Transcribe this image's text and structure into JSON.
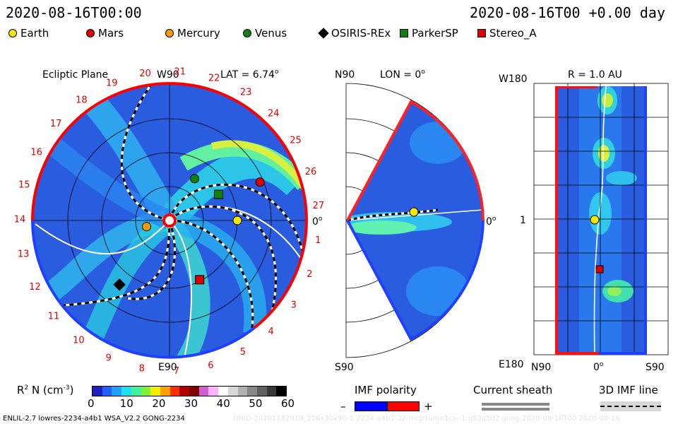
{
  "header": {
    "left_timestamp": "2020-08-16T00:00",
    "right_timestamp": "2020-08-16T00 +0.00 day"
  },
  "legend": [
    {
      "label": "Earth",
      "color": "#ffe800",
      "shape": "circle"
    },
    {
      "label": "Mars",
      "color": "#e00000",
      "shape": "circle"
    },
    {
      "label": "Mercury",
      "color": "#ff9a00",
      "shape": "circle"
    },
    {
      "label": "Venus",
      "color": "#108010",
      "shape": "circle"
    },
    {
      "label": "OSIRIS-REx",
      "color": "#000000",
      "shape": "diamond"
    },
    {
      "label": "ParkerSP",
      "color": "#108010",
      "shape": "square"
    },
    {
      "label": "Stereo_A",
      "color": "#e00000",
      "shape": "square"
    }
  ],
  "ecliptic": {
    "title": "Ecliptic Plane",
    "top_label": "W90",
    "bottom_label": "E90",
    "right_label": "0",
    "right_label_sup": "o",
    "lat_label": "LAT = 6.74",
    "lat_sup": "o",
    "carrington_labels": [
      "1",
      "2",
      "3",
      "4",
      "5",
      "6",
      "7",
      "8",
      "9",
      "10",
      "11",
      "12",
      "13",
      "14",
      "15",
      "16",
      "17",
      "18",
      "19",
      "20",
      "21",
      "22",
      "23",
      "24",
      "25",
      "26",
      "27"
    ]
  },
  "meridional": {
    "top_label": "N90",
    "bottom_label": "S90",
    "lon_label": "LON = 0",
    "lon_sup": "o",
    "right_label": "0",
    "right_sup": "o"
  },
  "synoptic": {
    "title": "R = 1.0 AU",
    "top_left": "W180",
    "bottom_left": "E180",
    "mid_left": "1",
    "x_left": "N90",
    "x_mid": "0",
    "x_mid_sup": "o",
    "x_right": "S90"
  },
  "colorbar": {
    "label": "R",
    "label_sup": "2",
    "label_rest": " N (cm",
    "label_sup2": "-3",
    "label_end": ")",
    "ticks": [
      "0",
      "10",
      "20",
      "30",
      "40",
      "50",
      "60"
    ],
    "colors": [
      "#2020c0",
      "#2060ff",
      "#20a0ff",
      "#20e0f0",
      "#40f0a0",
      "#80f040",
      "#f0f000",
      "#ffa000",
      "#ff3000",
      "#b00000",
      "#800000",
      "#d060d0",
      "#ffb0ff",
      "#ffffff",
      "#d8d8d8",
      "#b0b0b0",
      "#888888",
      "#606060",
      "#383838",
      "#000000"
    ]
  },
  "imf_legend": {
    "title": "IMF polarity",
    "minus": "–",
    "plus": "+",
    "neg_color": "#0000ff",
    "pos_color": "#ff0000"
  },
  "sheath_legend": {
    "title": "Current sheath"
  },
  "imf_line_legend": {
    "title": "3D IMF line"
  },
  "footer": {
    "left": "ENLIL-2.7 lowres-2234-a4b1 WSA_V2.2 GONG-2234",
    "right": "UNIQ-20201182919_256x30x90-1-2234-a4b1-32-mcp1umn1cs--1.g53q5d2 gong-2020-08-16T00 2020-08-16"
  },
  "chart_data": [
    {
      "type": "heatmap",
      "title": "Ecliptic Plane",
      "quantity": "R2 N (cm-3)",
      "colorbar_range": [
        0,
        60
      ],
      "bodies": [
        {
          "name": "Earth",
          "lon_deg": 0,
          "r_au": 1.0
        },
        {
          "name": "Mars",
          "lon_deg": 23,
          "r_au": 1.45
        },
        {
          "name": "Mercury",
          "lon_deg": 195,
          "r_au": 0.35
        },
        {
          "name": "Venus",
          "lon_deg": 59,
          "r_au": 0.72
        },
        {
          "name": "OSIRIS-REx",
          "lon_deg": 232,
          "r_au": 1.2
        },
        {
          "name": "ParkerSP",
          "lon_deg": 28,
          "r_au": 0.82
        },
        {
          "name": "Stereo_A",
          "lon_deg": 297,
          "r_au": 0.98
        }
      ]
    },
    {
      "type": "heatmap",
      "title": "LON = 0",
      "quantity": "R2 N (cm-3)",
      "lat_range": [
        -60,
        60
      ]
    },
    {
      "type": "heatmap",
      "title": "R = 1.0 AU",
      "x_ticks": [
        "N90",
        "0",
        "S90"
      ],
      "y_ticks": [
        "W180",
        "1",
        "E180"
      ]
    }
  ]
}
